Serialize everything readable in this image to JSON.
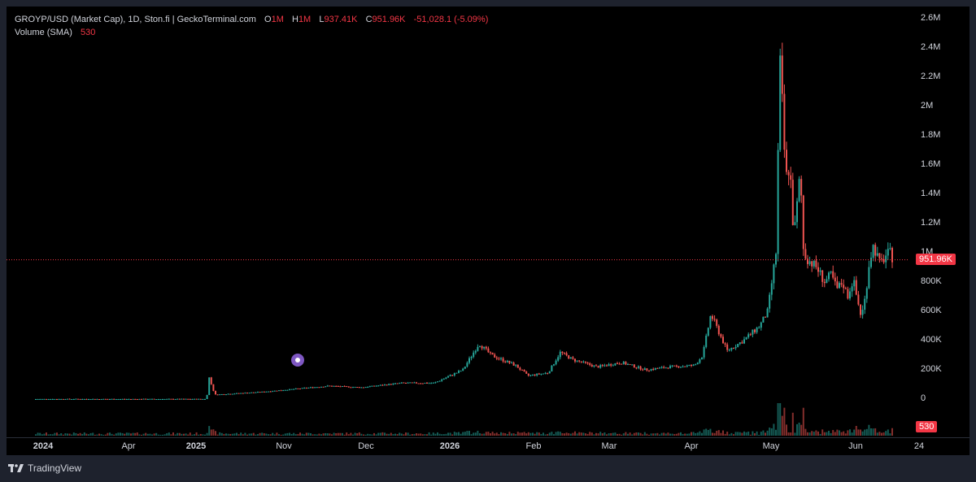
{
  "legend": {
    "symbol": "GROYP/USD (Market Cap), 1D, Ston.fi | GeckoTerminal.com",
    "o_label": "O",
    "o_value": "1M",
    "h_label": "H",
    "h_value": "1M",
    "l_label": "L",
    "l_value": "937.41K",
    "c_label": "C",
    "c_value": "951.96K",
    "change": "-51,028.1 (-5.09%)",
    "volume_label": "Volume (SMA)",
    "volume_value": "530"
  },
  "last_price_label": "951.96K",
  "volume_badge": "530",
  "footer": {
    "brand": "TradingView",
    "logo_icon": "tradingview-logo-icon"
  },
  "colors": {
    "up": "#26a69a",
    "down": "#ef5350",
    "badge": "#f23645",
    "background": "#000000"
  },
  "chart_data": {
    "type": "candlestick",
    "title": "GROYP/USD (Market Cap), 1D, Ston.fi | GeckoTerminal.com",
    "ylim": [
      0,
      2700000
    ],
    "y_ticks": [
      "0",
      "200K",
      "400K",
      "600K",
      "800K",
      "1M",
      "1.2M",
      "1.4M",
      "1.6M",
      "1.8M",
      "2M",
      "2.2M",
      "2.4M",
      "2.6M"
    ],
    "y_tick_values": [
      0,
      200000,
      400000,
      600000,
      800000,
      1000000,
      1200000,
      1400000,
      1600000,
      1800000,
      2000000,
      2200000,
      2400000,
      2600000
    ],
    "x_ticks": [
      {
        "label": "2024",
        "bold": true
      },
      {
        "label": "Apr",
        "bold": false
      },
      {
        "label": "2025",
        "bold": true
      },
      {
        "label": "Nov",
        "bold": false
      },
      {
        "label": "Dec",
        "bold": false
      },
      {
        "label": "2026",
        "bold": true
      },
      {
        "label": "Feb",
        "bold": false
      },
      {
        "label": "Mar",
        "bold": false
      },
      {
        "label": "Apr",
        "bold": false
      },
      {
        "label": "May",
        "bold": false
      },
      {
        "label": "Jun",
        "bold": false
      },
      {
        "label": "24",
        "bold": false
      }
    ],
    "last_close": 951960,
    "market_cap_path": [
      [
        0,
        0
      ],
      [
        210,
        0
      ],
      [
        213,
        150000
      ],
      [
        220,
        30000
      ],
      [
        280,
        50000
      ],
      [
        320,
        70000
      ],
      [
        360,
        90000
      ],
      [
        400,
        80000
      ],
      [
        450,
        110000
      ],
      [
        490,
        110000
      ],
      [
        525,
        200000
      ],
      [
        545,
        380000
      ],
      [
        560,
        300000
      ],
      [
        590,
        230000
      ],
      [
        605,
        160000
      ],
      [
        630,
        180000
      ],
      [
        645,
        320000
      ],
      [
        660,
        270000
      ],
      [
        690,
        220000
      ],
      [
        720,
        250000
      ],
      [
        750,
        200000
      ],
      [
        780,
        220000
      ],
      [
        810,
        230000
      ],
      [
        820,
        300000
      ],
      [
        830,
        580000
      ],
      [
        850,
        330000
      ],
      [
        870,
        400000
      ],
      [
        890,
        500000
      ],
      [
        900,
        600000
      ],
      [
        905,
        800000
      ],
      [
        910,
        1000000
      ],
      [
        915,
        2300000
      ],
      [
        918,
        2000000
      ],
      [
        922,
        1500000
      ],
      [
        927,
        1600000
      ],
      [
        932,
        1100000
      ],
      [
        940,
        1550000
      ],
      [
        944,
        1000000
      ],
      [
        950,
        950000
      ],
      [
        960,
        900000
      ],
      [
        970,
        800000
      ],
      [
        978,
        850000
      ],
      [
        985,
        750000
      ],
      [
        992,
        800000
      ],
      [
        998,
        700000
      ],
      [
        1005,
        820000
      ],
      [
        1010,
        680000
      ],
      [
        1015,
        560000
      ],
      [
        1020,
        700000
      ],
      [
        1025,
        950000
      ],
      [
        1030,
        1050000
      ],
      [
        1038,
        920000
      ],
      [
        1045,
        980000
      ],
      [
        1050,
        1000000
      ],
      [
        1055,
        951960
      ]
    ]
  }
}
